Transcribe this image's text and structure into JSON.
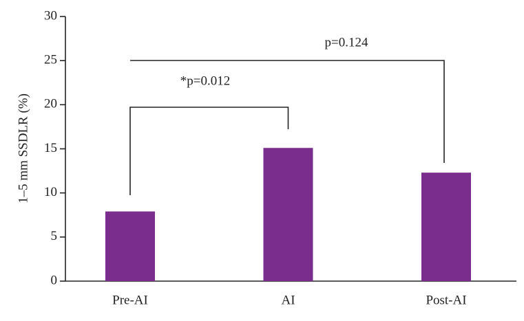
{
  "chart_data": {
    "type": "bar",
    "y_label": "1–5 mm SSDLR (%)",
    "categories": [
      "Pre-AI",
      "AI",
      "Post-AI"
    ],
    "values": [
      7.9,
      15.1,
      12.3
    ],
    "color": "#7b2d8e",
    "ylim": [
      0,
      30
    ],
    "yticks": [
      0,
      5,
      10,
      15,
      20,
      25,
      30
    ],
    "annotations": [
      "*p=0.012",
      "p=0.124"
    ]
  }
}
